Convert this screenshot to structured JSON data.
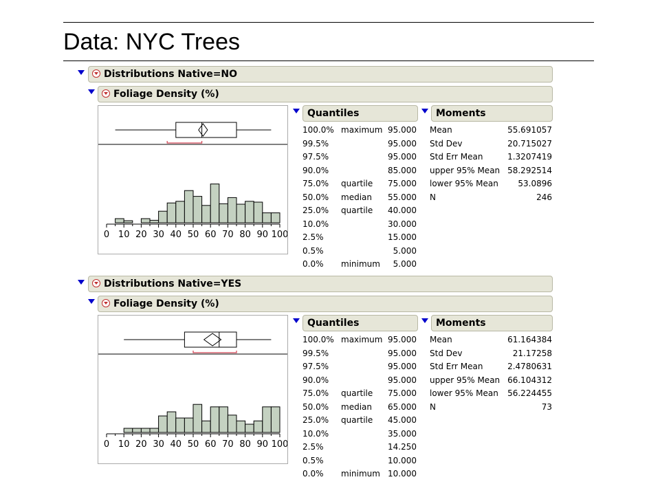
{
  "slide": {
    "title": "Data: NYC Trees"
  },
  "common": {
    "variable_label": "Foliage Density (%)",
    "quantiles_title": "Quantiles",
    "moments_title": "Moments",
    "axis_ticks": [
      "0",
      "10",
      "20",
      "30",
      "40",
      "50",
      "60",
      "70",
      "80",
      "90",
      "100"
    ],
    "hist_color": "#c4d1c1",
    "bracket_color": "#d04050"
  },
  "panels": [
    {
      "header": "Distributions Native=NO",
      "quantiles": [
        {
          "pct": "100.0%",
          "label": "maximum",
          "value": "95.000"
        },
        {
          "pct": "99.5%",
          "label": "",
          "value": "95.000"
        },
        {
          "pct": "97.5%",
          "label": "",
          "value": "95.000"
        },
        {
          "pct": "90.0%",
          "label": "",
          "value": "85.000"
        },
        {
          "pct": "75.0%",
          "label": "quartile",
          "value": "75.000"
        },
        {
          "pct": "50.0%",
          "label": "median",
          "value": "55.000"
        },
        {
          "pct": "25.0%",
          "label": "quartile",
          "value": "40.000"
        },
        {
          "pct": "10.0%",
          "label": "",
          "value": "30.000"
        },
        {
          "pct": "2.5%",
          "label": "",
          "value": "15.000"
        },
        {
          "pct": "0.5%",
          "label": "",
          "value": "5.000"
        },
        {
          "pct": "0.0%",
          "label": "minimum",
          "value": "5.000"
        }
      ],
      "moments": [
        {
          "label": "Mean",
          "value": "55.691057"
        },
        {
          "label": "Std Dev",
          "value": "20.715027"
        },
        {
          "label": "Std Err Mean",
          "value": "1.3207419"
        },
        {
          "label": "upper 95% Mean",
          "value": "58.292514"
        },
        {
          "label": "lower 95% Mean",
          "value": "53.0896"
        },
        {
          "label": "N",
          "value": "246"
        }
      ],
      "chart_data": {
        "type": "bar",
        "xlim": [
          0,
          100
        ],
        "bin_width": 5,
        "bin_starts": [
          5,
          10,
          15,
          20,
          25,
          30,
          35,
          40,
          45,
          50,
          55,
          60,
          65,
          70,
          75,
          80,
          85,
          90,
          95
        ],
        "values": [
          1,
          0.5,
          0,
          1,
          0.6,
          2.8,
          4.8,
          5.2,
          7.8,
          6.4,
          4.2,
          9.4,
          4.6,
          6.1,
          4.5,
          5.2,
          5,
          2.4,
          2.4
        ],
        "box": {
          "min": 5,
          "q1": 40,
          "median": 55,
          "q3": 75,
          "max": 95,
          "mean": 55.69,
          "ci_low": 53.09,
          "ci_high": 58.29
        },
        "shortest_half": [
          35,
          55
        ]
      }
    },
    {
      "header": "Distributions Native=YES",
      "quantiles": [
        {
          "pct": "100.0%",
          "label": "maximum",
          "value": "95.000"
        },
        {
          "pct": "99.5%",
          "label": "",
          "value": "95.000"
        },
        {
          "pct": "97.5%",
          "label": "",
          "value": "95.000"
        },
        {
          "pct": "90.0%",
          "label": "",
          "value": "95.000"
        },
        {
          "pct": "75.0%",
          "label": "quartile",
          "value": "75.000"
        },
        {
          "pct": "50.0%",
          "label": "median",
          "value": "65.000"
        },
        {
          "pct": "25.0%",
          "label": "quartile",
          "value": "45.000"
        },
        {
          "pct": "10.0%",
          "label": "",
          "value": "35.000"
        },
        {
          "pct": "2.5%",
          "label": "",
          "value": "14.250"
        },
        {
          "pct": "0.5%",
          "label": "",
          "value": "10.000"
        },
        {
          "pct": "0.0%",
          "label": "minimum",
          "value": "10.000"
        }
      ],
      "moments": [
        {
          "label": "Mean",
          "value": "61.164384"
        },
        {
          "label": "Std Dev",
          "value": "21.17258"
        },
        {
          "label": "Std Err Mean",
          "value": "2.4780631"
        },
        {
          "label": "upper 95% Mean",
          "value": "66.104312"
        },
        {
          "label": "lower 95% Mean",
          "value": "56.224455"
        },
        {
          "label": "N",
          "value": "73"
        }
      ],
      "chart_data": {
        "type": "bar",
        "xlim": [
          0,
          100
        ],
        "bin_width": 5,
        "bin_starts": [
          10,
          15,
          20,
          25,
          30,
          35,
          40,
          45,
          50,
          55,
          60,
          65,
          70,
          75,
          80,
          85,
          90,
          95
        ],
        "values": [
          1,
          1,
          1,
          1,
          4,
          5,
          3.5,
          3.5,
          6.8,
          2.8,
          6.2,
          6.2,
          4.2,
          2.8,
          2,
          2.8,
          6.2,
          6.2
        ],
        "box": {
          "min": 10,
          "q1": 45,
          "median": 65,
          "q3": 75,
          "max": 95,
          "mean": 61.16,
          "ci_low": 56.22,
          "ci_high": 66.1
        },
        "shortest_half": [
          50,
          75
        ]
      }
    }
  ]
}
